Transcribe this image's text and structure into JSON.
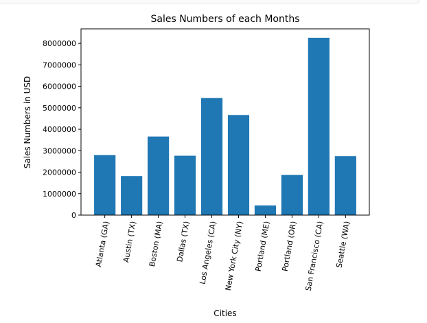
{
  "chart_data": {
    "type": "bar",
    "title": "Sales Numbers of each Months",
    "xlabel": "Cities",
    "ylabel": "Sales Numbers in USD",
    "categories": [
      "Atlanta (GA)",
      "Austin (TX)",
      "Boston (MA)",
      "Dallas (TX)",
      "Los Angeles (CA)",
      "New York City (NY)",
      "Portland (ME)",
      "Portland (OR)",
      "San Francisco (CA)",
      "Seattle (WA)"
    ],
    "values": [
      2795000,
      1819000,
      3661000,
      2767000,
      5452000,
      4664000,
      449000,
      1870000,
      8262000,
      2747000
    ],
    "ylim": [
      0,
      8676000
    ],
    "yticks": [
      0,
      1000000,
      2000000,
      3000000,
      4000000,
      5000000,
      6000000,
      7000000,
      8000000
    ],
    "ytick_labels": [
      "0",
      "1000000",
      "2000000",
      "3000000",
      "4000000",
      "5000000",
      "6000000",
      "7000000",
      "8000000"
    ],
    "bar_color": "#1f77b4",
    "grid": false,
    "legend": "none",
    "xtick_rotation": "80deg"
  }
}
